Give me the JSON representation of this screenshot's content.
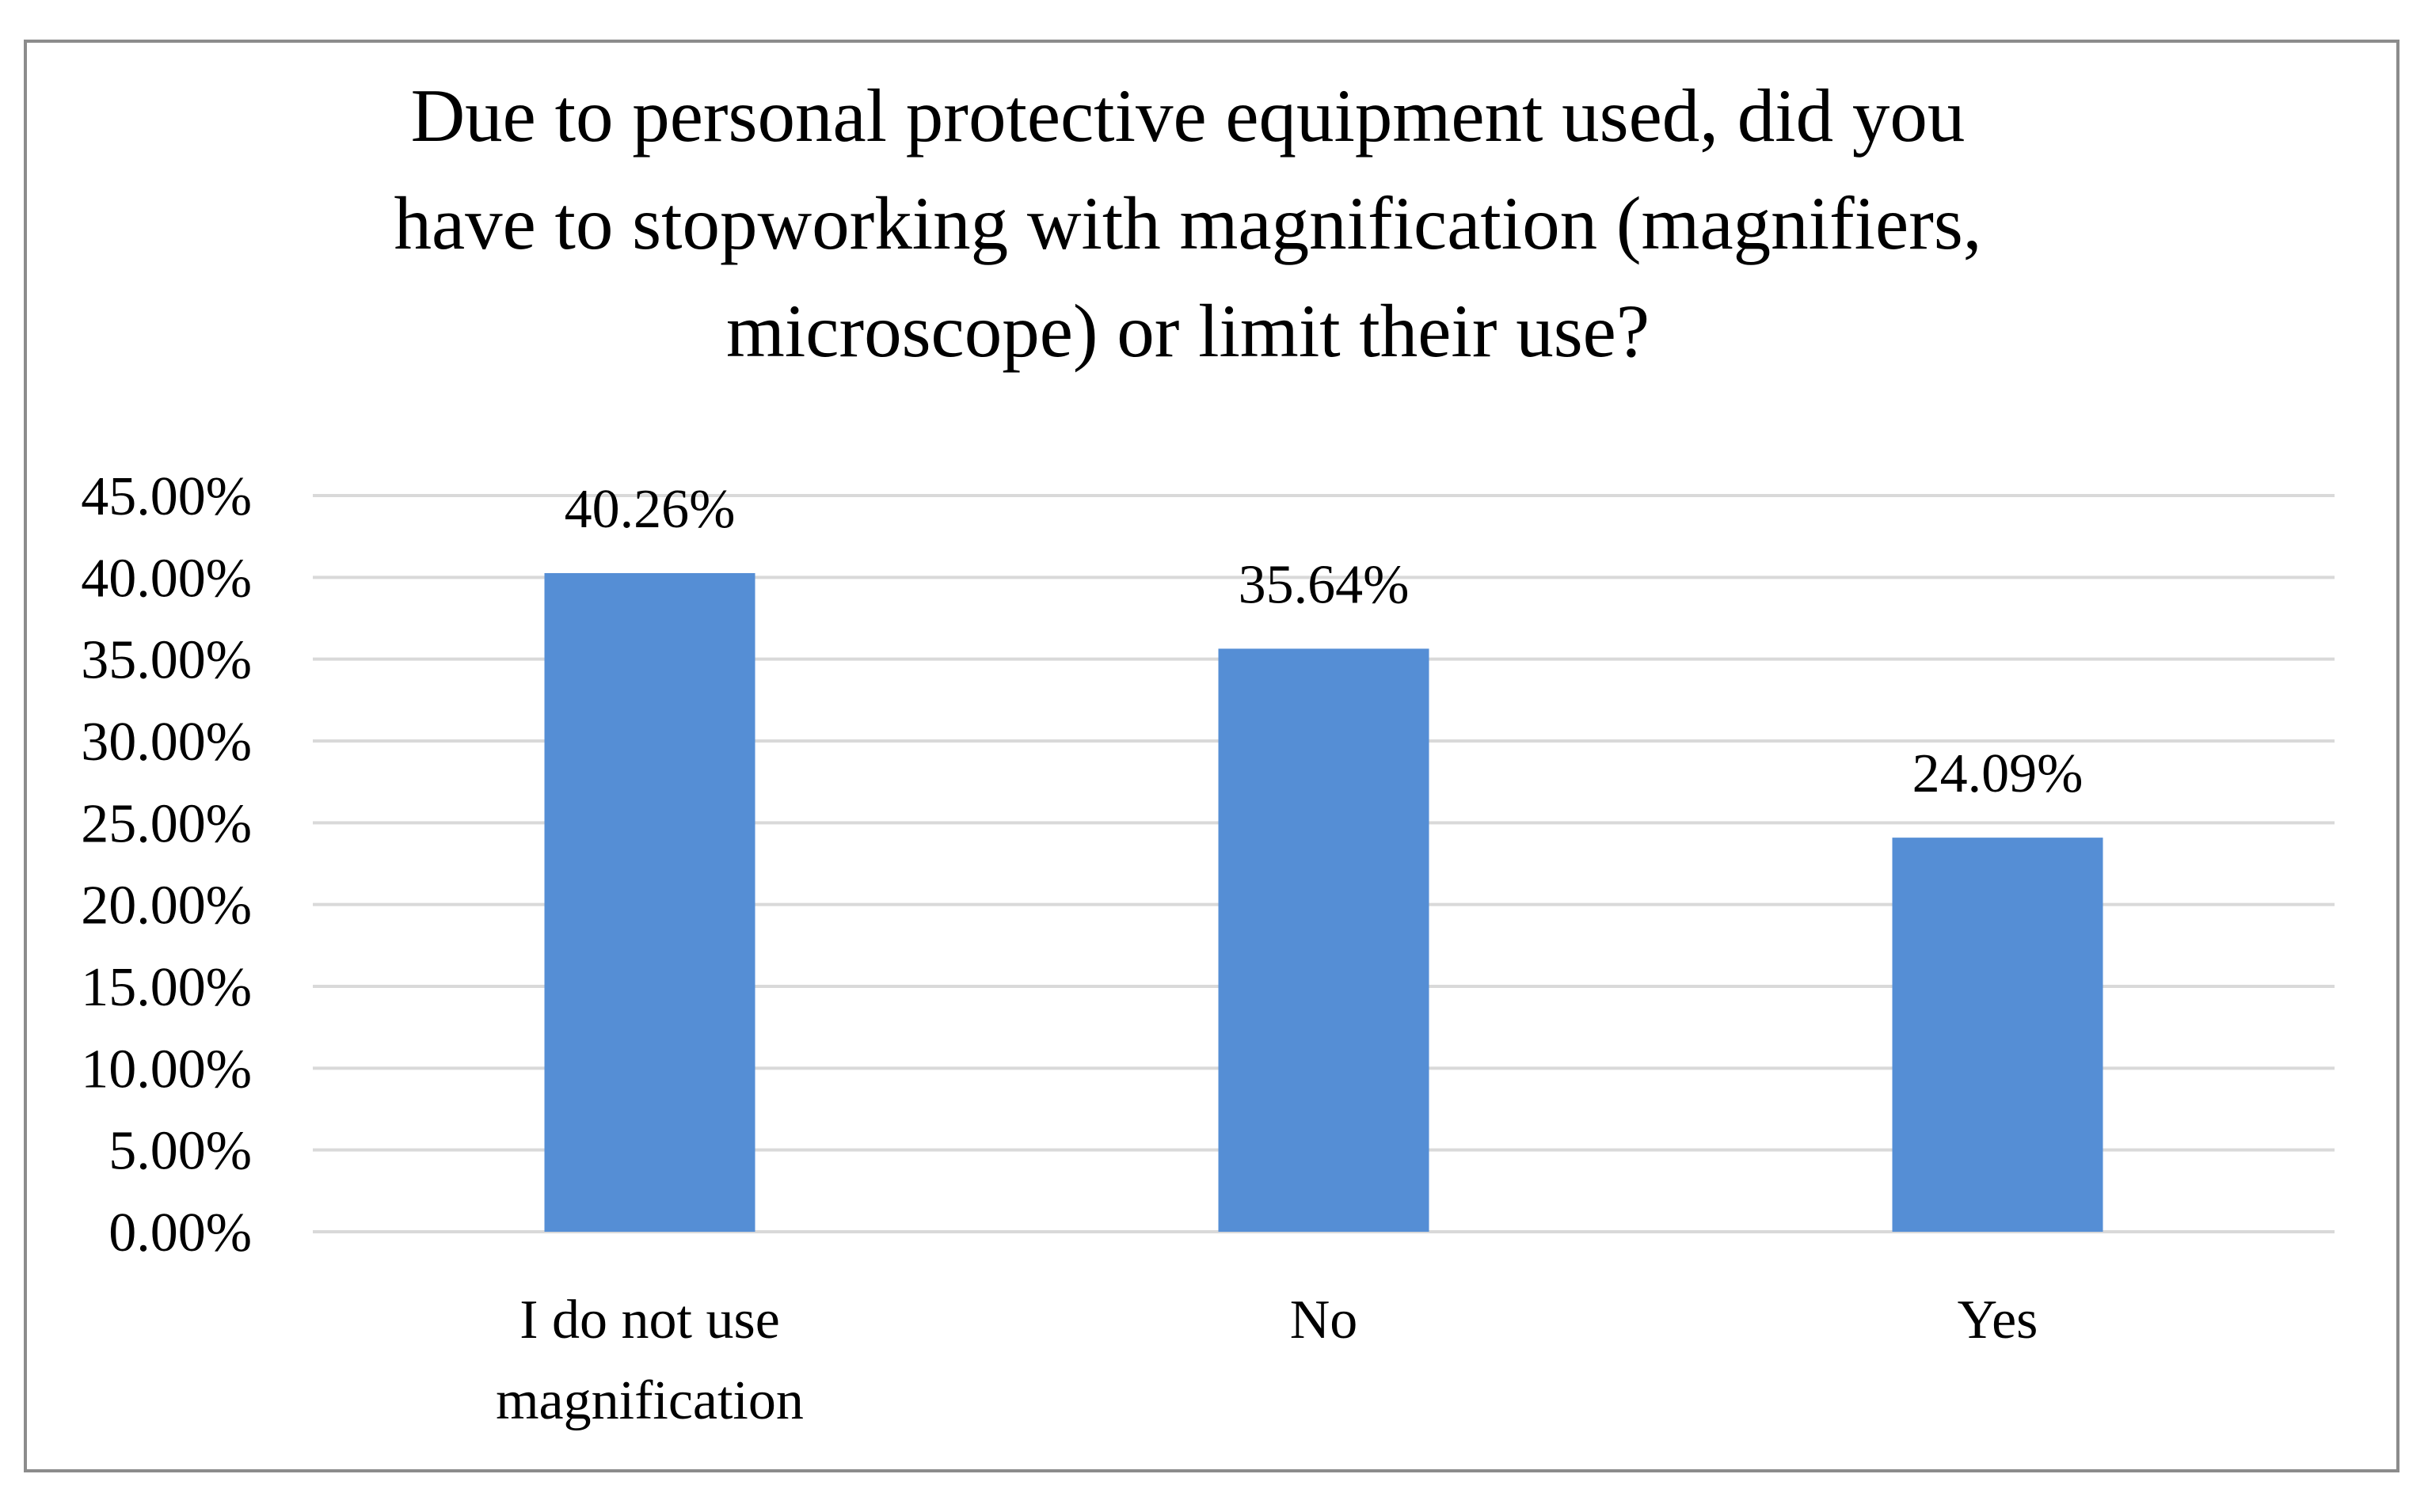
{
  "chart_data": {
    "type": "bar",
    "title_lines": [
      "Due to personal protective equipment used, did you",
      "have to stopworking with magnification (magnifiers,",
      "microscope) or limit their use?"
    ],
    "categories": [
      [
        "I do not use",
        "magnification"
      ],
      [
        "No"
      ],
      [
        "Yes"
      ]
    ],
    "values": [
      40.26,
      35.64,
      24.09
    ],
    "value_labels": [
      "40.26%",
      "35.64%",
      "24.09%"
    ],
    "ylim": [
      0,
      45
    ],
    "yticks": [
      0,
      5,
      10,
      15,
      20,
      25,
      30,
      35,
      40,
      45
    ],
    "ytick_labels": [
      "0.00%",
      "5.00%",
      "10.00%",
      "15.00%",
      "20.00%",
      "25.00%",
      "30.00%",
      "35.00%",
      "40.00%",
      "45.00%"
    ],
    "grid": true,
    "legend": "none",
    "colors": {
      "bar": "#558ed5",
      "grid": "#d9d9d9",
      "border": "#8c8c8c"
    }
  }
}
